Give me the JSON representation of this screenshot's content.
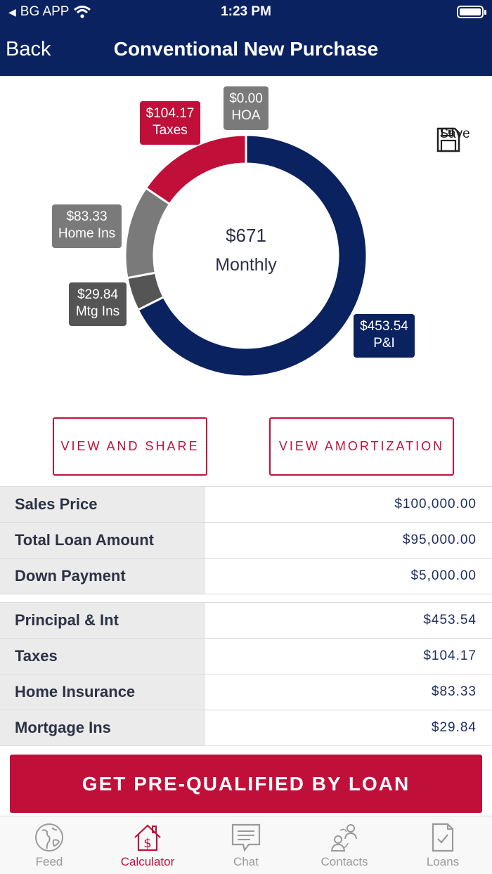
{
  "status": {
    "back_app": "BG APP",
    "time": "1:23 PM"
  },
  "nav": {
    "back_label": "Back",
    "title": "Conventional New Purchase"
  },
  "chart_data": {
    "type": "pie",
    "title": "Monthly",
    "center_value": "$671",
    "center_label": "Monthly",
    "slices": [
      {
        "name": "P&I",
        "value": 453.54,
        "label": "$453.54",
        "color": "#0b2260"
      },
      {
        "name": "Mtg Ins",
        "value": 29.84,
        "label": "$29.84",
        "color": "#555555"
      },
      {
        "name": "Home Ins",
        "value": 83.33,
        "label": "$83.33",
        "color": "#7a7a7a"
      },
      {
        "name": "Taxes",
        "value": 104.17,
        "label": "$104.17",
        "color": "#c0103a"
      },
      {
        "name": "HOA",
        "value": 0.0,
        "label": "$0.00",
        "color": "#7a7a7a"
      }
    ]
  },
  "save_label": "Save",
  "actions": {
    "view_share": "VIEW AND SHARE",
    "view_amortization": "VIEW AMORTIZATION"
  },
  "loan_table": [
    {
      "label": "Sales Price",
      "value": "$100,000.00"
    },
    {
      "label": "Total Loan Amount",
      "value": "$95,000.00"
    },
    {
      "label": "Down Payment",
      "value": "$5,000.00"
    }
  ],
  "payment_table": [
    {
      "label": "Principal & Int",
      "value": "$453.54"
    },
    {
      "label": "Taxes",
      "value": "$104.17"
    },
    {
      "label": "Home Insurance",
      "value": "$83.33"
    },
    {
      "label": "Mortgage Ins",
      "value": "$29.84"
    }
  ],
  "cta_label": "GET PRE-QUALIFIED BY LOAN",
  "tabs": [
    {
      "label": "Feed",
      "icon": "globe-icon"
    },
    {
      "label": "Calculator",
      "icon": "house-dollar-icon",
      "active": true
    },
    {
      "label": "Chat",
      "icon": "chat-icon"
    },
    {
      "label": "Contacts",
      "icon": "contacts-icon"
    },
    {
      "label": "Loans",
      "icon": "document-check-icon"
    }
  ],
  "colors": {
    "navy": "#0b2260",
    "crimson": "#c0103a",
    "gray": "#7a7a7a",
    "dark_gray": "#555555"
  }
}
